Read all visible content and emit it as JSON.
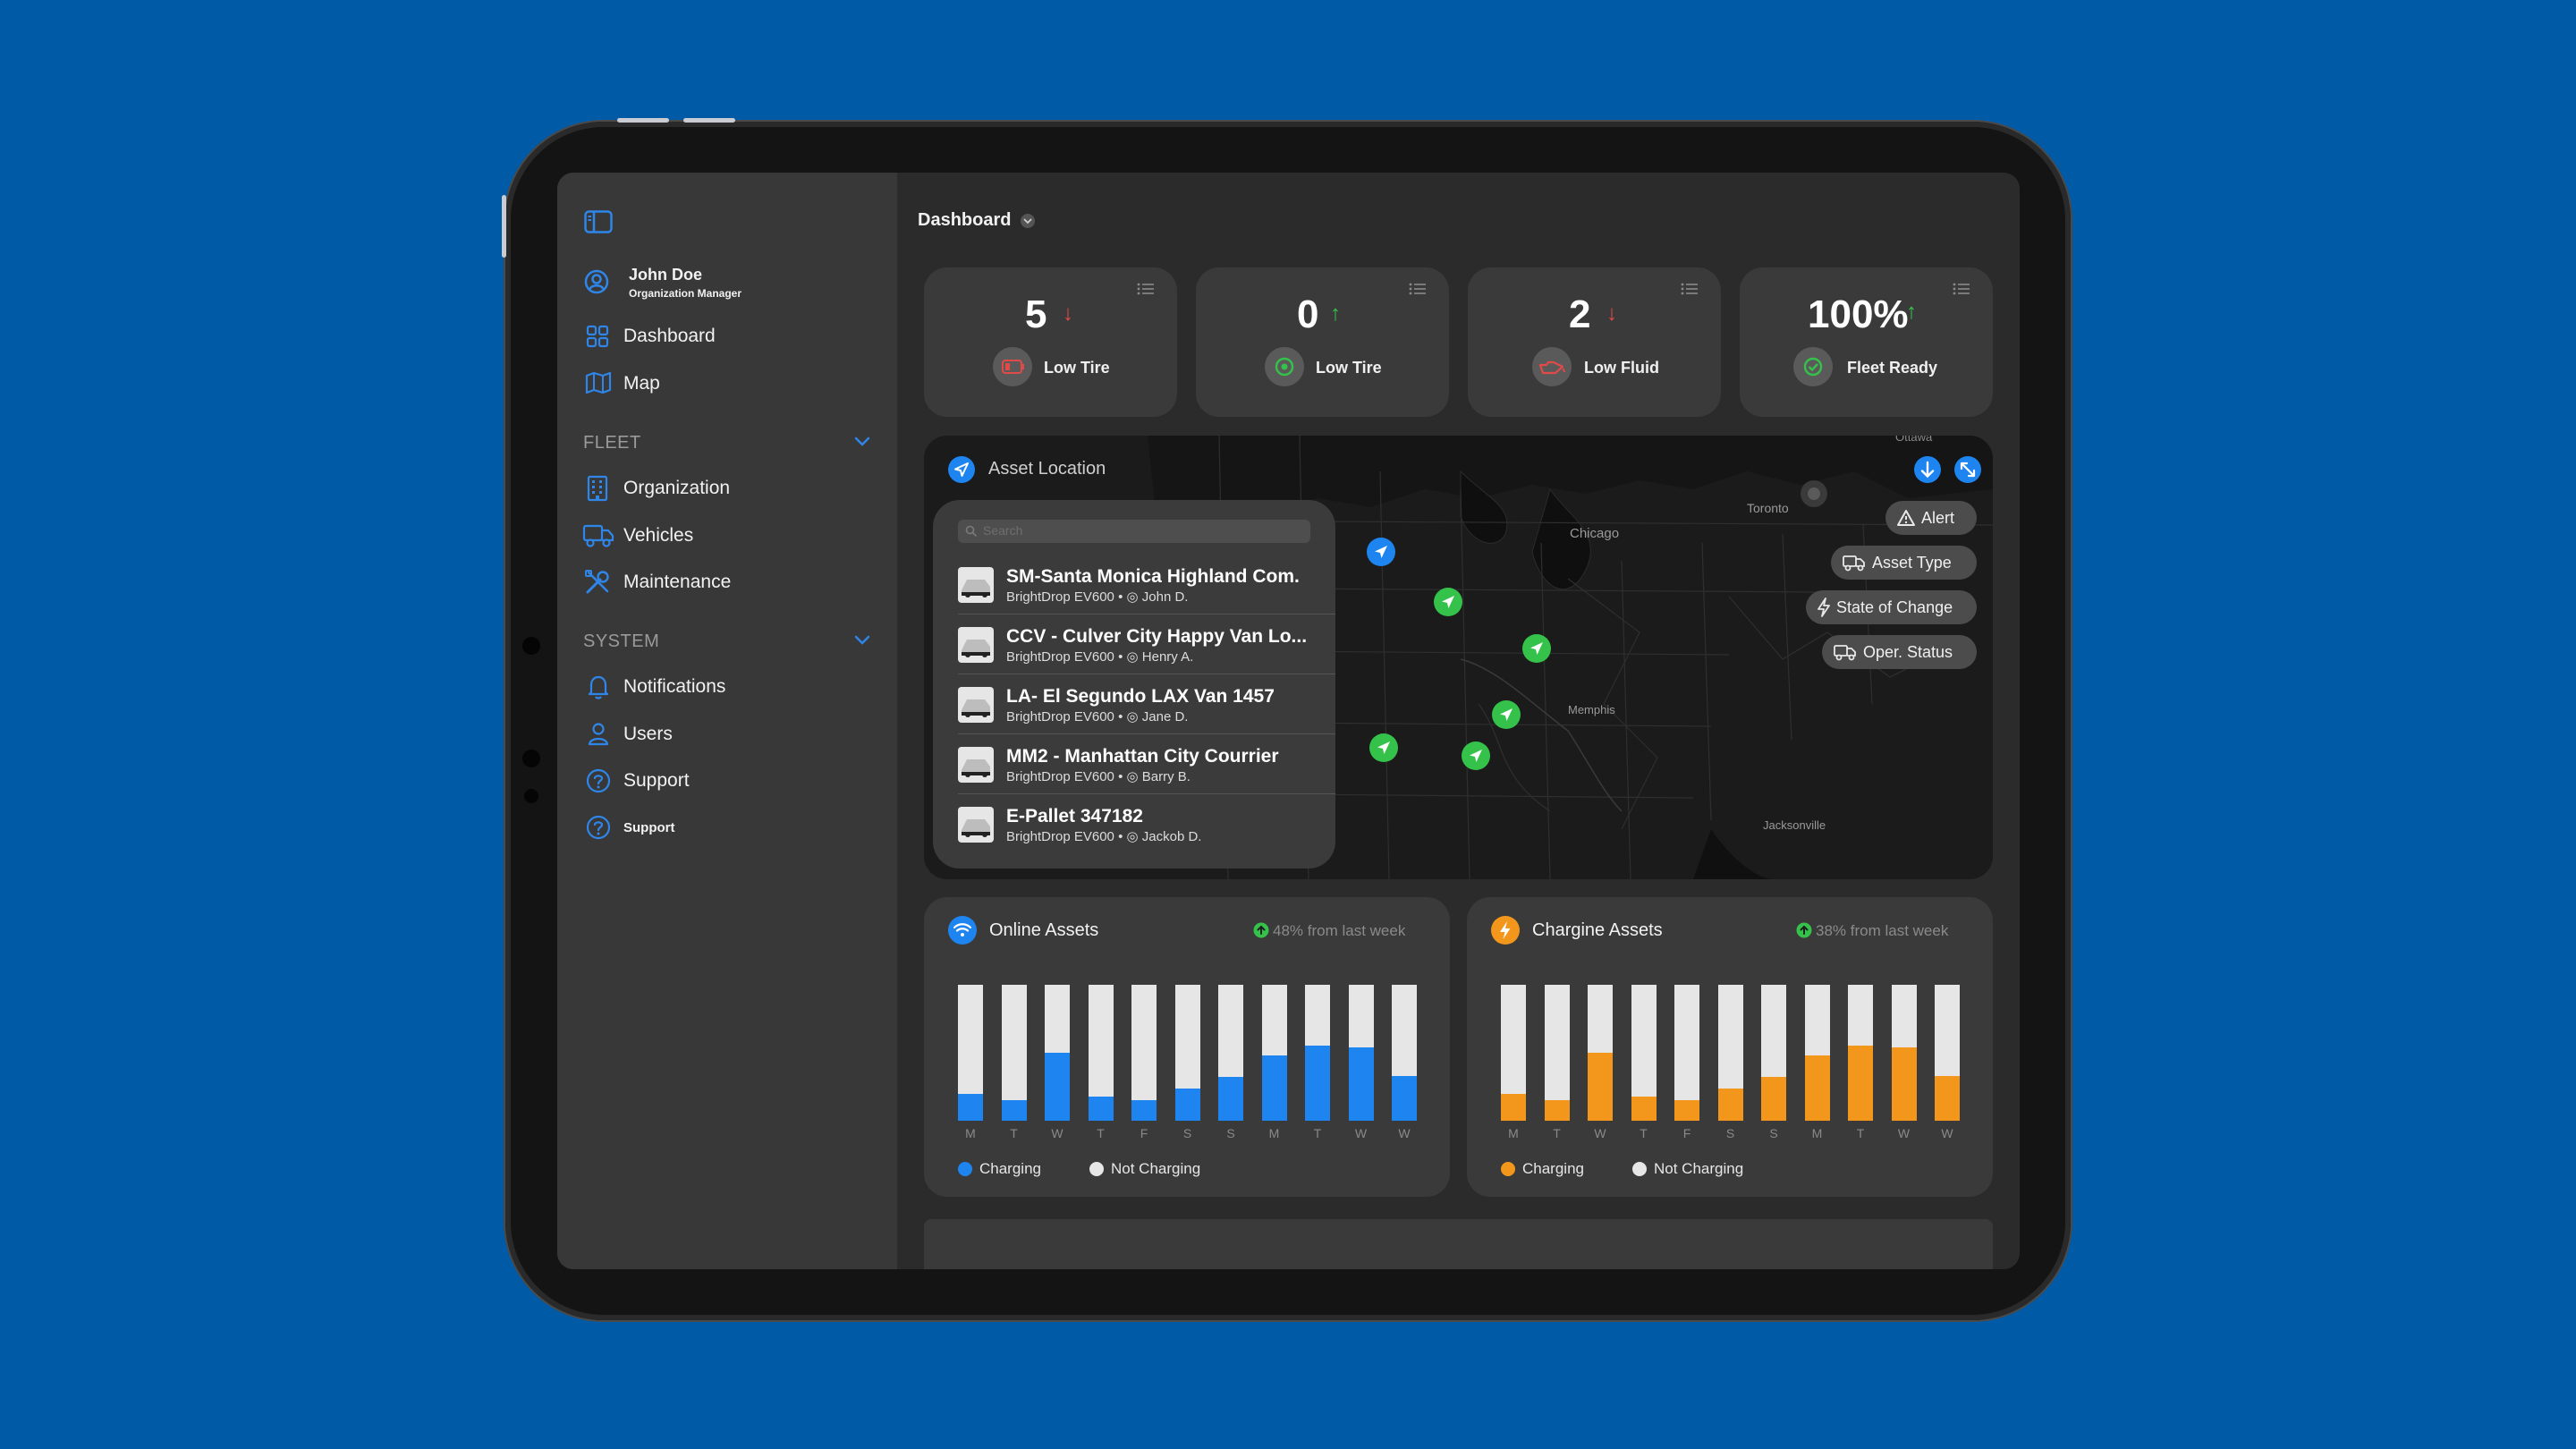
{
  "colors": {
    "background": "#005aa6",
    "accent_blue": "#1e84f0",
    "accent_orange": "#f3961c",
    "green": "#35c24a",
    "red": "#e24a4a",
    "bar_empty": "#e6e6e6"
  },
  "header": {
    "title": "Dashboard"
  },
  "user": {
    "name": "John Doe",
    "role": "Organization Manager"
  },
  "nav": {
    "dashboard": "Dashboard",
    "map": "Map",
    "fleet_section": "FLEET",
    "organization": "Organization",
    "vehicles": "Vehicles",
    "maintenance": "Maintenance",
    "system_section": "SYSTEM",
    "notifications": "Notifications",
    "users": "Users",
    "support": "Support",
    "support_small": "Support"
  },
  "stats": [
    {
      "value": "5",
      "trend": "down",
      "trend_glyph": "↓",
      "label": "Low Tire",
      "icon": "battery-low-icon"
    },
    {
      "value": "0",
      "trend": "up",
      "trend_glyph": "↑",
      "label": "Low Tire",
      "icon": "tire-ok-icon"
    },
    {
      "value": "2",
      "trend": "down",
      "trend_glyph": "↓",
      "label": "Low Fluid",
      "icon": "oil-can-icon"
    },
    {
      "value": "100%",
      "trend": "up",
      "trend_glyph": "↑",
      "label": "Fleet Ready",
      "icon": "check-icon"
    }
  ],
  "map": {
    "title": "Asset Location",
    "search_placeholder": "Search",
    "city_labels": {
      "toronto": "Toronto",
      "chicago": "Chicago",
      "memphis": "Memphis",
      "jacksonville": "Jacksonville",
      "ottawa": "Ottawa"
    },
    "filters": {
      "alert": "Alert",
      "asset_type": "Asset Type",
      "state_of_change": "State of Change",
      "oper_status": "Oper. Status"
    },
    "assets": [
      {
        "name": "SM-Santa Monica Highland Com.",
        "model": "BrightDrop EV600",
        "driver": "John D."
      },
      {
        "name": "CCV - Culver City Happy Van Lo...",
        "model": "BrightDrop EV600",
        "driver": "Henry A."
      },
      {
        "name": "LA- El Segundo LAX Van 1457",
        "model": "BrightDrop EV600",
        "driver": "Jane D."
      },
      {
        "name": "MM2 - Manhattan City Courrier",
        "model": "BrightDrop EV600",
        "driver": "Barry B."
      },
      {
        "name": "E-Pallet 347182",
        "model": "BrightDrop EV600",
        "driver": "Jackob D."
      }
    ]
  },
  "panels": {
    "online": {
      "title": "Online Assets",
      "change": "48% from last week"
    },
    "charging": {
      "title": "Chargine Assets",
      "change": "38% from last week"
    },
    "legend_charging": "Charging",
    "legend_not_charging": "Not Charging"
  },
  "chart_data": [
    {
      "type": "bar",
      "title": "Online Assets",
      "categories": [
        "M",
        "T",
        "W",
        "T",
        "F",
        "S",
        "S",
        "M",
        "T",
        "W",
        "W"
      ],
      "series": [
        {
          "name": "Charging",
          "values": [
            20,
            15,
            50,
            18,
            15,
            24,
            32,
            48,
            55,
            54,
            33
          ]
        }
      ],
      "ylim": [
        0,
        100
      ]
    },
    {
      "type": "bar",
      "title": "Chargine Assets",
      "categories": [
        "M",
        "T",
        "W",
        "T",
        "F",
        "S",
        "S",
        "M",
        "T",
        "W",
        "W"
      ],
      "series": [
        {
          "name": "Charging",
          "values": [
            20,
            15,
            50,
            18,
            15,
            24,
            32,
            48,
            55,
            54,
            33
          ]
        }
      ],
      "ylim": [
        0,
        100
      ]
    }
  ]
}
